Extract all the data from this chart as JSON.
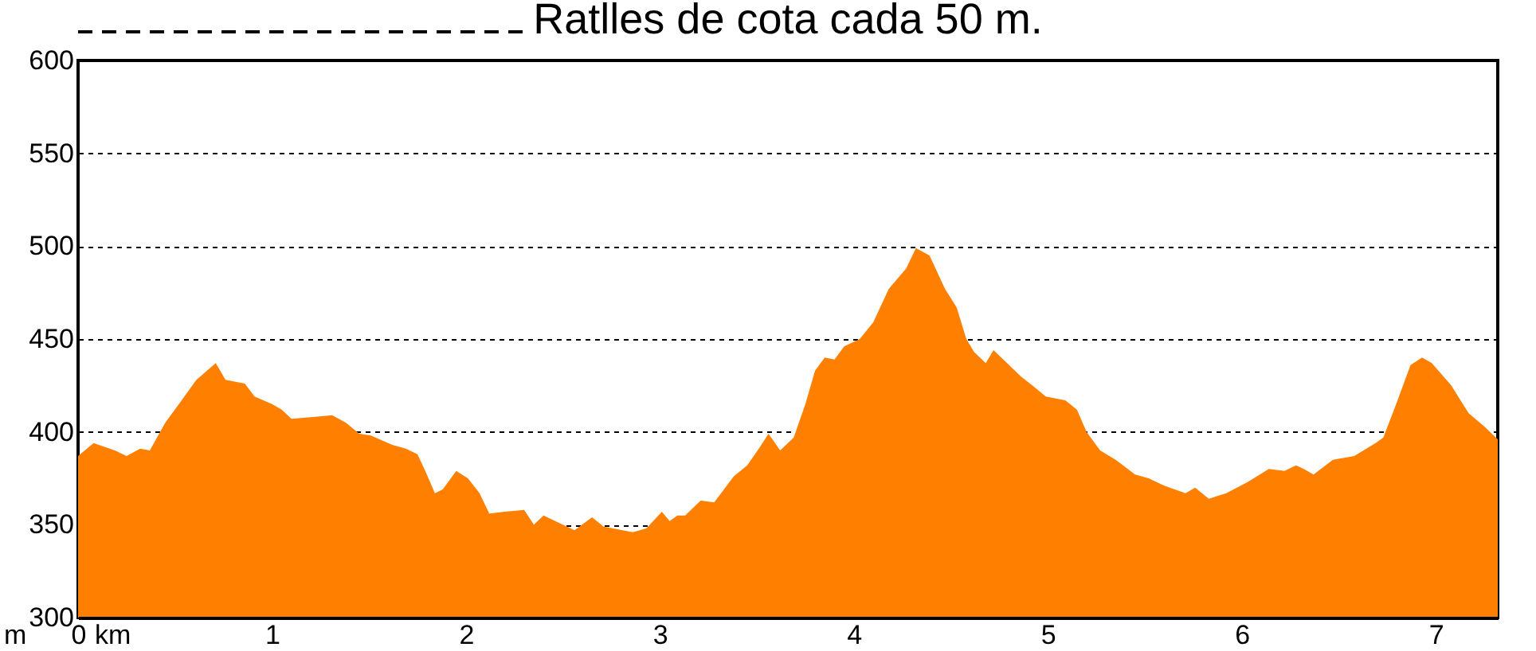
{
  "chart_data": {
    "type": "area",
    "title": "Ratlles de cota cada 50 m.",
    "xlabel": "km",
    "ylabel": "m",
    "color": "#ff8000",
    "x": [
      0,
      0.08,
      0.19,
      0.25,
      0.32,
      0.37,
      0.45,
      0.52,
      0.61,
      0.71,
      0.76,
      0.86,
      0.91,
      1.0,
      1.05,
      1.1,
      1.21,
      1.31,
      1.38,
      1.45,
      1.51,
      1.62,
      1.69,
      1.75,
      1.79,
      1.84,
      1.88,
      1.95,
      2.01,
      2.07,
      2.12,
      2.2,
      2.3,
      2.35,
      2.4,
      2.56,
      2.65,
      2.71,
      2.86,
      2.93,
      3.01,
      3.05,
      3.09,
      3.13,
      3.21,
      3.28,
      3.38,
      3.45,
      3.51,
      3.56,
      3.62,
      3.69,
      3.75,
      3.8,
      3.85,
      3.9,
      3.95,
      4.03,
      4.1,
      4.18,
      4.27,
      4.32,
      4.39,
      4.47,
      4.53,
      4.58,
      4.62,
      4.68,
      4.72,
      4.79,
      4.86,
      4.92,
      4.99,
      5.09,
      5.15,
      5.2,
      5.27,
      5.35,
      5.45,
      5.52,
      5.6,
      5.71,
      5.76,
      5.83,
      5.92,
      6.03,
      6.14,
      6.22,
      6.28,
      6.32,
      6.37,
      6.47,
      6.58,
      6.69,
      6.73,
      6.8,
      6.87,
      6.93,
      6.98,
      7.08,
      7.17,
      7.25,
      7.32
    ],
    "values": [
      387,
      394,
      390,
      387,
      391,
      390,
      405,
      415,
      428,
      437,
      428,
      426,
      419,
      415,
      412,
      407,
      408,
      409,
      405,
      399,
      398,
      393,
      391,
      388,
      379,
      367,
      369,
      379,
      375,
      367,
      356,
      357,
      358,
      350,
      355,
      347,
      354,
      349,
      346,
      348,
      357,
      352,
      355,
      355,
      363,
      362,
      376,
      382,
      391,
      399,
      390,
      397,
      415,
      433,
      440,
      439,
      446,
      450,
      459,
      477,
      488,
      499,
      495,
      477,
      467,
      450,
      443,
      437,
      444,
      437,
      430,
      425,
      419,
      417,
      412,
      400,
      390,
      385,
      377,
      375,
      371,
      367,
      370,
      364,
      367,
      373,
      380,
      379,
      382,
      380,
      377,
      385,
      387,
      394,
      397,
      416,
      436,
      440,
      437,
      425,
      410,
      403,
      396
    ],
    "xlim": [
      0,
      7.32
    ],
    "ylim": [
      300,
      600
    ],
    "xticks": [
      0,
      1,
      2,
      3,
      4,
      5,
      6,
      7
    ],
    "yticks": [
      300,
      350,
      400,
      450,
      500,
      550,
      600
    ],
    "grid": "y"
  }
}
